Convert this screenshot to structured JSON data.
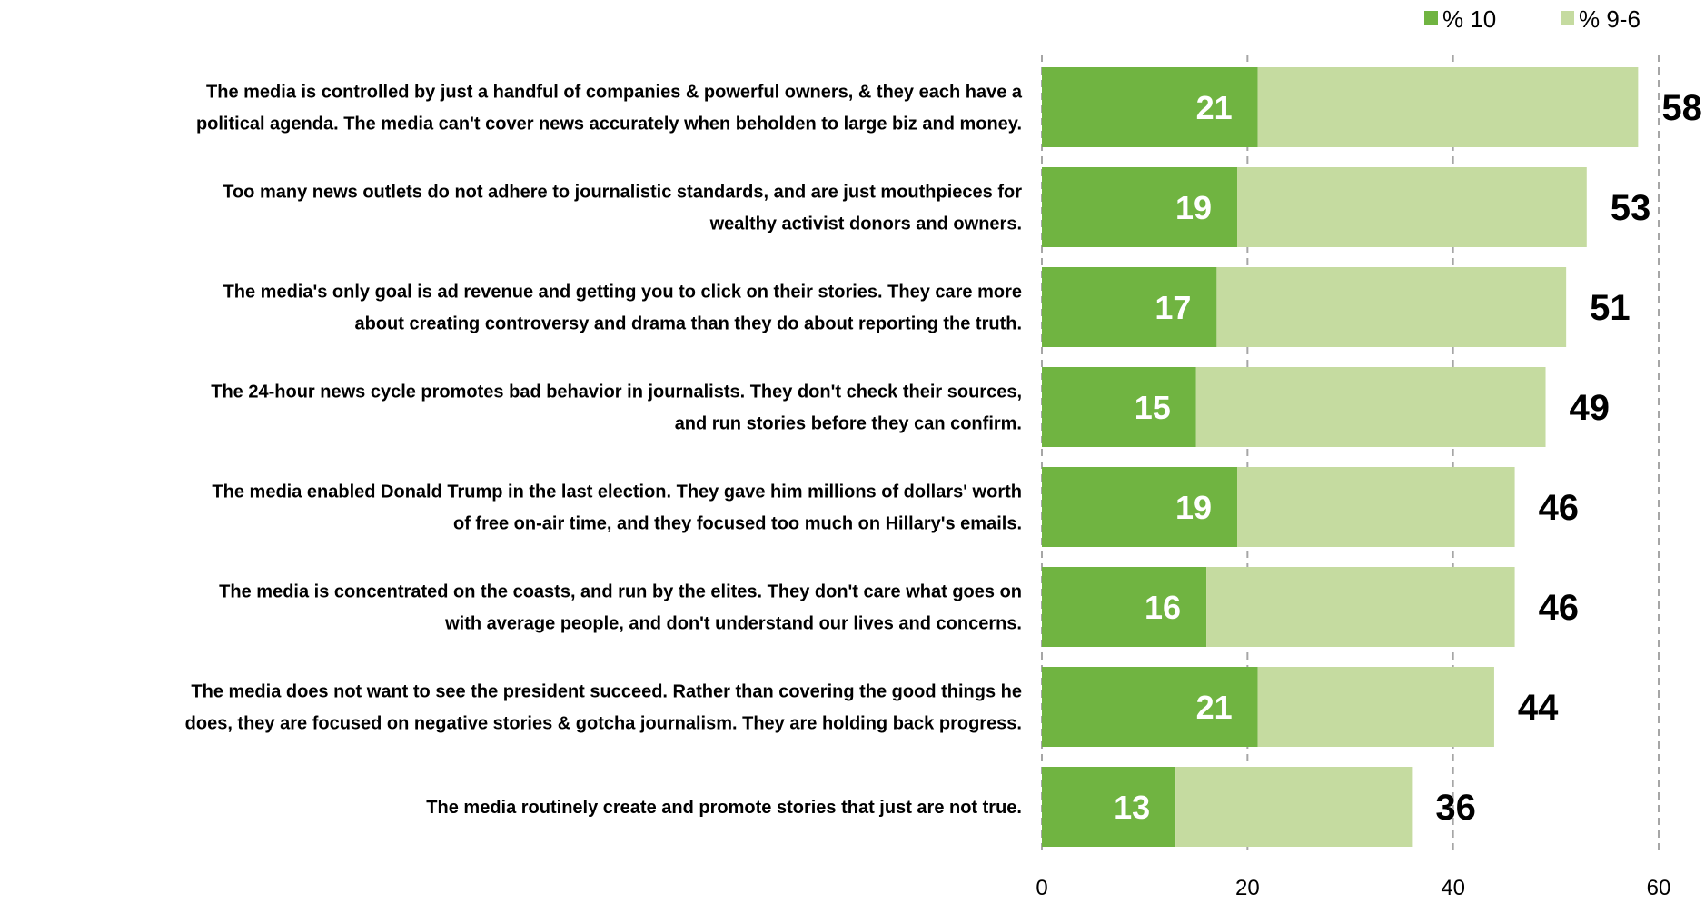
{
  "chart_data": {
    "type": "bar",
    "orientation": "horizontal",
    "stacked": true,
    "categories": [
      [
        "The media is controlled by just a handful of companies & powerful owners, & they each have a",
        "political agenda. The media can't cover news accurately when beholden to large biz and money."
      ],
      [
        "Too many news outlets do not adhere to journalistic standards, and are just mouthpieces for",
        "wealthy activist donors and owners."
      ],
      [
        "The media's only goal is ad revenue and getting you to click on their stories. They care more",
        "about creating controversy and drama than they do about reporting the truth."
      ],
      [
        "The 24-hour news cycle promotes bad behavior in journalists. They don't check their sources,",
        "and run stories before they can confirm."
      ],
      [
        "The media enabled Donald Trump in the last election. They gave him millions of dollars' worth",
        "of free on-air time, and they focused too much on Hillary's emails."
      ],
      [
        "The media is concentrated on the coasts, and run by the elites. They don't care what goes on",
        "with average people, and don't understand our lives and concerns."
      ],
      [
        "The media does not want to see the president succeed. Rather than covering the good things he",
        "does, they are focused on negative stories & gotcha journalism. They are holding back progress."
      ],
      [
        "The media routinely create and promote stories that just are not true."
      ]
    ],
    "series": [
      {
        "name": "% 10",
        "color": "#70b441",
        "values": [
          21,
          19,
          17,
          15,
          19,
          16,
          21,
          13
        ]
      },
      {
        "name": "% 9-6",
        "color": "#c5dba0",
        "values": [
          37,
          34,
          34,
          34,
          27,
          30,
          23,
          23
        ]
      }
    ],
    "totals": [
      58,
      53,
      51,
      49,
      46,
      46,
      44,
      36
    ],
    "xlim": [
      0,
      60
    ],
    "xticks": [
      0,
      20,
      40,
      60
    ],
    "grid": true,
    "legend_position": "top-right"
  }
}
